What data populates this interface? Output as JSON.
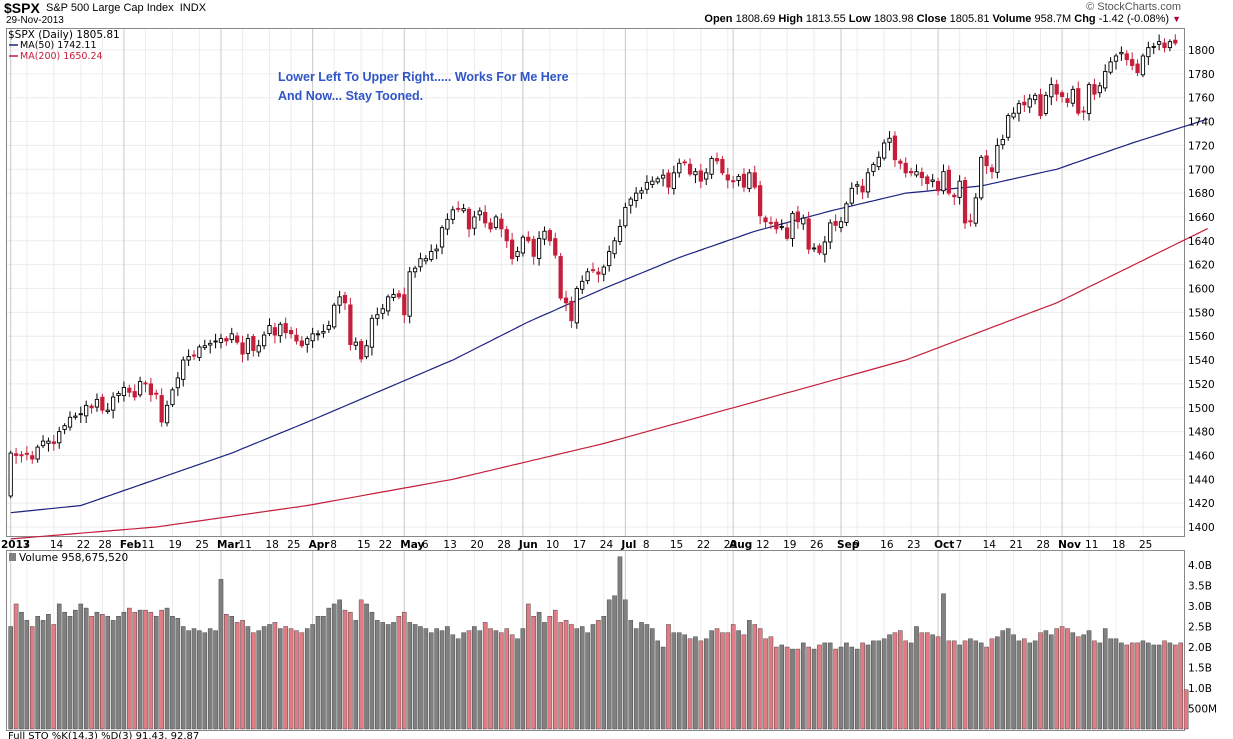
{
  "header": {
    "symbol": "$SPX",
    "name": "S&P 500 Large Cap Index",
    "exchange": "INDX",
    "date": "29-Nov-2013",
    "brand": "© StockCharts.com",
    "open_label": "Open",
    "open": "1808.69",
    "high_label": "High",
    "high": "1813.55",
    "low_label": "Low",
    "low": "1803.98",
    "close_label": "Close",
    "close": "1805.81",
    "volume_label": "Volume",
    "volume": "958.7M",
    "chg_label": "Chg",
    "chg": "-1.42 (-0.08%)"
  },
  "legend": {
    "price": "$SPX (Daily) 1805.81",
    "ma50": "MA(50) 1742.11",
    "ma200": "MA(200) 1650.24"
  },
  "annotation": {
    "line1": "Lower Left To Upper Right.....  Works For Me Here",
    "line2": "And Now...   Stay Tooned."
  },
  "volume_panel": {
    "label": "Volume 958,675,520"
  },
  "sto_panel": {
    "label": "Full STO %K(14,3) %D(3) 91.43, 92.87"
  },
  "colors": {
    "up": "#000000",
    "down": "#c41e3a",
    "ma50": "#1a237e",
    "ma200": "#c41e3a",
    "vol_up": "#808080",
    "vol_down": "#e07c84",
    "annotation": "#2f55c8"
  },
  "chart_data": [
    {
      "type": "candlestick",
      "title": "$SPX (Daily) 1805.81",
      "ylim": [
        1390,
        1820
      ],
      "y_ticks": [
        1400,
        1420,
        1440,
        1460,
        1480,
        1500,
        1520,
        1540,
        1560,
        1580,
        1600,
        1620,
        1640,
        1660,
        1680,
        1700,
        1720,
        1740,
        1760,
        1780,
        1800
      ],
      "x_ticks": [
        "2013",
        "7",
        "14",
        "22",
        "28",
        "Feb",
        "11",
        "19",
        "25",
        "Mar",
        "11",
        "18",
        "25",
        "Apr",
        "8",
        "15",
        "22",
        "May",
        "6",
        "13",
        "20",
        "28",
        "Jun",
        "10",
        "17",
        "24",
        "Jul",
        "8",
        "15",
        "22",
        "29",
        "Aug",
        "12",
        "19",
        "26",
        "Sep",
        "9",
        "16",
        "23",
        "Oct",
        "7",
        "14",
        "21",
        "28",
        "Nov",
        "11",
        "18",
        "25"
      ],
      "x_tick_bold": [
        "2013",
        "Feb",
        "Mar",
        "Apr",
        "May",
        "Jun",
        "Jul",
        "Aug",
        "Sep",
        "Oct",
        "Nov"
      ],
      "closes": [
        1462,
        1460,
        1460,
        1461,
        1457,
        1467,
        1472,
        1472,
        1470,
        1480,
        1485,
        1492,
        1493,
        1495,
        1502,
        1500,
        1507,
        1498,
        1498,
        1509,
        1512,
        1517,
        1513,
        1509,
        1522,
        1520,
        1511,
        1512,
        1488,
        1502,
        1515,
        1525,
        1540,
        1543,
        1544,
        1551,
        1552,
        1554,
        1556,
        1558,
        1556,
        1562,
        1555,
        1545,
        1558,
        1548,
        1552,
        1561,
        1569,
        1561,
        1570,
        1563,
        1562,
        1556,
        1552,
        1558,
        1562,
        1562,
        1564,
        1569,
        1586,
        1593,
        1588,
        1553,
        1555,
        1541,
        1552,
        1575,
        1578,
        1583,
        1593,
        1595,
        1593,
        1578,
        1614,
        1617,
        1625,
        1625,
        1631,
        1633,
        1651,
        1658,
        1666,
        1667,
        1667,
        1650,
        1660,
        1665,
        1655,
        1650,
        1660,
        1650,
        1640,
        1625,
        1631,
        1643,
        1640,
        1627,
        1642,
        1648,
        1640,
        1628,
        1592,
        1588,
        1573,
        1600,
        1606,
        1614,
        1615,
        1612,
        1618,
        1631,
        1640,
        1652,
        1668,
        1675,
        1680,
        1682,
        1689,
        1690,
        1692,
        1695,
        1685,
        1697,
        1705,
        1706,
        1696,
        1698,
        1690,
        1697,
        1709,
        1707,
        1697,
        1691,
        1690,
        1694,
        1685,
        1697,
        1685,
        1661,
        1656,
        1655,
        1650,
        1652,
        1642,
        1663,
        1656,
        1659,
        1633,
        1634,
        1630,
        1639,
        1655,
        1653,
        1656,
        1671,
        1684,
        1687,
        1681,
        1697,
        1704,
        1710,
        1722,
        1726,
        1708,
        1705,
        1697,
        1697,
        1698,
        1693,
        1688,
        1691,
        1682,
        1698,
        1680,
        1677,
        1690,
        1655,
        1656,
        1676,
        1710,
        1703,
        1698,
        1720,
        1725,
        1745,
        1747,
        1755,
        1754,
        1759,
        1762,
        1745,
        1762,
        1771,
        1763,
        1761,
        1756,
        1767,
        1747,
        1748,
        1771,
        1763,
        1770,
        1782,
        1790,
        1795,
        1798,
        1792,
        1787,
        1781,
        1795,
        1802,
        1803,
        1807,
        1802,
        1807,
        1805.81
      ],
      "ma50": {
        "name": "MA(50) 1742.11",
        "points": [
          [
            0,
            1412
          ],
          [
            13,
            1418
          ],
          [
            27,
            1440
          ],
          [
            41,
            1462
          ],
          [
            55,
            1488
          ],
          [
            68,
            1513
          ],
          [
            82,
            1540
          ],
          [
            96,
            1572
          ],
          [
            110,
            1600
          ],
          [
            124,
            1626
          ],
          [
            138,
            1648
          ],
          [
            152,
            1665
          ],
          [
            166,
            1680
          ],
          [
            180,
            1686
          ],
          [
            194,
            1700
          ],
          [
            208,
            1722
          ],
          [
            222,
            1742.11
          ]
        ]
      },
      "ma200": {
        "name": "MA(200) 1650.24",
        "points": [
          [
            0,
            1390
          ],
          [
            27,
            1400
          ],
          [
            55,
            1418
          ],
          [
            82,
            1440
          ],
          [
            110,
            1470
          ],
          [
            138,
            1505
          ],
          [
            166,
            1540
          ],
          [
            194,
            1588
          ],
          [
            222,
            1650.24
          ]
        ]
      }
    },
    {
      "type": "bar",
      "title": "Volume 958,675,520",
      "ylim": [
        0,
        4.2
      ],
      "y_ticks": [
        "500M",
        "1.0B",
        "1.5B",
        "2.0B",
        "2.5B",
        "3.0B",
        "3.5B",
        "4.0B"
      ],
      "values_billions": [
        2.5,
        3.05,
        2.85,
        2.65,
        2.5,
        2.75,
        2.65,
        2.8,
        2.55,
        3.05,
        2.85,
        2.75,
        2.9,
        3.05,
        2.95,
        2.75,
        2.85,
        2.8,
        2.75,
        2.65,
        2.75,
        2.85,
        2.95,
        2.85,
        2.9,
        2.9,
        2.85,
        2.75,
        2.9,
        2.95,
        2.75,
        2.7,
        2.5,
        2.4,
        2.45,
        2.4,
        2.35,
        2.45,
        2.4,
        3.65,
        2.8,
        2.75,
        2.6,
        2.65,
        2.5,
        2.35,
        2.4,
        2.5,
        2.55,
        2.6,
        2.45,
        2.5,
        2.45,
        2.4,
        2.35,
        2.45,
        2.55,
        2.75,
        2.75,
        2.95,
        3.05,
        3.15,
        2.9,
        2.85,
        2.65,
        3.15,
        3.05,
        2.85,
        2.65,
        2.6,
        2.55,
        2.6,
        2.75,
        2.85,
        2.6,
        2.55,
        2.5,
        2.45,
        2.35,
        2.45,
        2.4,
        2.5,
        2.3,
        2.2,
        2.35,
        2.4,
        2.5,
        2.4,
        2.6,
        2.45,
        2.4,
        2.35,
        2.45,
        2.3,
        2.2,
        2.45,
        3.05,
        2.75,
        2.85,
        2.6,
        2.75,
        2.9,
        2.6,
        2.65,
        2.55,
        2.45,
        2.5,
        2.35,
        2.55,
        2.65,
        2.75,
        3.15,
        3.25,
        4.2,
        3.15,
        2.65,
        2.45,
        2.6,
        2.55,
        2.45,
        2.15,
        2.0,
        2.55,
        2.35,
        2.35,
        2.3,
        2.2,
        2.25,
        2.15,
        2.2,
        2.4,
        2.45,
        2.35,
        2.35,
        2.55,
        2.4,
        2.3,
        2.65,
        2.55,
        2.45,
        2.2,
        2.25,
        2.0,
        2.05,
        2.0,
        1.95,
        1.95,
        2.1,
        2.0,
        1.95,
        2.05,
        2.1,
        2.1,
        1.95,
        2.0,
        2.1,
        2.0,
        1.95,
        2.1,
        2.05,
        2.15,
        2.15,
        2.2,
        2.3,
        2.35,
        2.4,
        2.15,
        2.1,
        2.5,
        2.35,
        2.35,
        2.3,
        2.25,
        3.3,
        2.15,
        2.15,
        2.05,
        2.15,
        2.2,
        2.15,
        2.1,
        2.0,
        2.2,
        2.25,
        2.4,
        2.45,
        2.3,
        2.15,
        2.2,
        2.1,
        2.15,
        2.35,
        2.4,
        2.3,
        2.45,
        2.5,
        2.45,
        2.35,
        2.25,
        2.3,
        2.4,
        2.15,
        2.1,
        2.45,
        2.2,
        2.2,
        2.1,
        2.05,
        2.1,
        2.1,
        2.15,
        2.1,
        2.05,
        2.05,
        2.15,
        2.1,
        2.05,
        2.1,
        0.96
      ]
    }
  ]
}
